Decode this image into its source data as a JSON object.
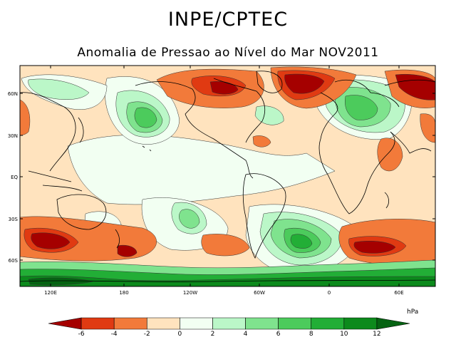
{
  "header": {
    "title": "INPE/CPTEC",
    "subtitle": "Anomalia de Pressao ao Nível do Mar NOV2011"
  },
  "map": {
    "lat_ticks": [
      "60N",
      "30N",
      "EQ",
      "30S",
      "60S"
    ],
    "lon_ticks": [
      "120E",
      "180",
      "120W",
      "60W",
      "0",
      "60E"
    ],
    "colors": {
      "ocean_base": "#FFFFFF",
      "coast": "#000000"
    }
  },
  "legend": {
    "unit": "hPa",
    "labels": [
      "-6",
      "-4",
      "-2",
      "0",
      "2",
      "4",
      "6",
      "8",
      "10",
      "12"
    ],
    "colors": [
      "#A50000",
      "#E03A12",
      "#F27A3A",
      "#FFE3BE",
      "#F2FFF2",
      "#BBF7C8",
      "#7FE38E",
      "#4CCB5C",
      "#22AE36",
      "#0C8A1C",
      "#056312"
    ]
  }
}
